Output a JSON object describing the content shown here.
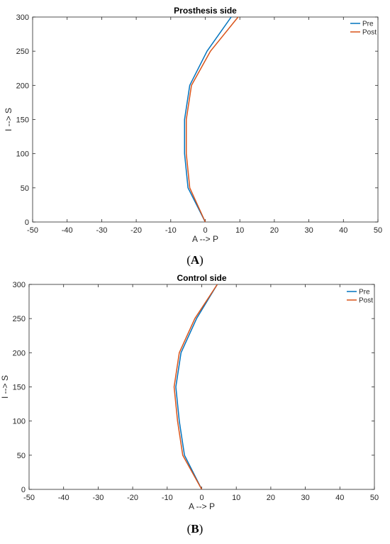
{
  "chart_data": [
    {
      "type": "line",
      "title": "Prosthesis side",
      "xlabel": "A --> P",
      "ylabel": "I --> S",
      "xlim": [
        -50,
        50
      ],
      "ylim": [
        0,
        300
      ],
      "xticks": [
        -50,
        -40,
        -30,
        -20,
        -10,
        0,
        10,
        20,
        30,
        40,
        50
      ],
      "yticks": [
        0,
        50,
        100,
        150,
        200,
        250,
        300
      ],
      "legend_position": "top-right",
      "grid": false,
      "caption": {
        "open": "(",
        "letter": "A",
        "close": ")"
      },
      "series": [
        {
          "name": "Pre",
          "color": "#0072BD",
          "x": [
            0,
            -5,
            -6,
            -6,
            -4.5,
            0.5,
            7.5
          ],
          "y": [
            0,
            50,
            100,
            150,
            200,
            250,
            300
          ]
        },
        {
          "name": "Post",
          "color": "#D95319",
          "x": [
            0,
            -4.5,
            -5.5,
            -5.5,
            -4,
            1.5,
            9.5
          ],
          "y": [
            0,
            50,
            100,
            150,
            200,
            250,
            300
          ]
        }
      ]
    },
    {
      "type": "line",
      "title": "Control side",
      "xlabel": "A --> P",
      "ylabel": "I --> S",
      "xlim": [
        -50,
        50
      ],
      "ylim": [
        0,
        300
      ],
      "xticks": [
        -50,
        -40,
        -30,
        -20,
        -10,
        0,
        10,
        20,
        30,
        40,
        50
      ],
      "yticks": [
        0,
        50,
        100,
        150,
        200,
        250,
        300
      ],
      "legend_position": "top-right",
      "grid": false,
      "caption": {
        "open": "(",
        "letter": "B",
        "close": ")"
      },
      "series": [
        {
          "name": "Pre",
          "color": "#0072BD",
          "x": [
            0,
            -5,
            -6.5,
            -7.5,
            -6,
            -1.5,
            4.5
          ],
          "y": [
            0,
            50,
            100,
            150,
            200,
            250,
            300
          ]
        },
        {
          "name": "Post",
          "color": "#D95319",
          "x": [
            0,
            -5.5,
            -7,
            -8,
            -6.5,
            -2,
            4.5
          ],
          "y": [
            0,
            50,
            100,
            150,
            200,
            250,
            300
          ]
        }
      ]
    }
  ]
}
